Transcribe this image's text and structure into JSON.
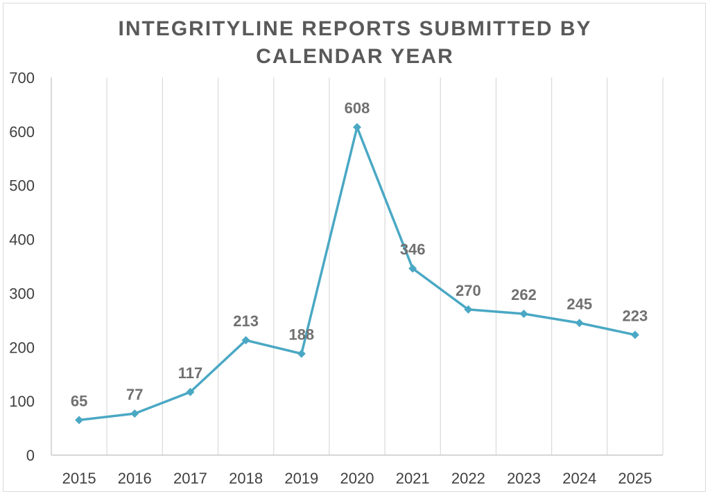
{
  "chart_data": {
    "type": "line",
    "title": "INTEGRITYLINE REPORTS SUBMITTED BY\nCALENDAR YEAR",
    "xlabel": "",
    "ylabel": "",
    "categories": [
      "2015",
      "2016",
      "2017",
      "2018",
      "2019",
      "2020",
      "2021",
      "2022",
      "2023",
      "2024",
      "2025"
    ],
    "series": [
      {
        "values": [
          65,
          77,
          117,
          213,
          188,
          608,
          346,
          270,
          262,
          245,
          223
        ],
        "color": "#4aa8c4"
      }
    ],
    "ylim": [
      0,
      700
    ],
    "yticks": [
      0,
      100,
      200,
      300,
      400,
      500,
      600,
      700
    ],
    "grid": "vertical",
    "legend": "none",
    "marker": "diamond",
    "data_labels": true
  }
}
